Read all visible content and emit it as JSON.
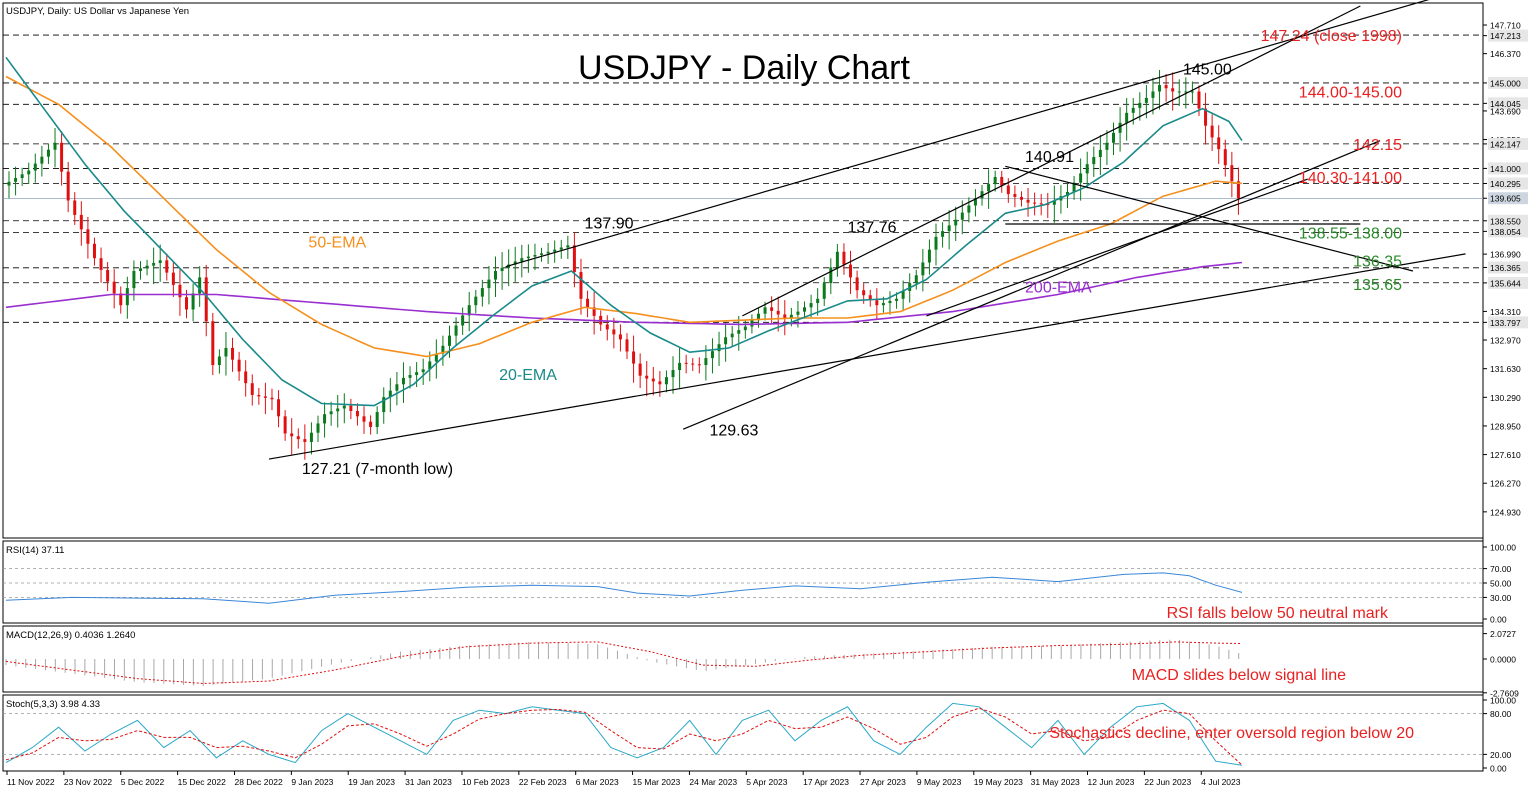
{
  "header": {
    "symbol_caption": "USDJPY, Daily:  US Dollar vs Japanese Yen"
  },
  "colors": {
    "bull": "#0b7a1c",
    "bear": "#e01010",
    "ema20": "#1a8a8a",
    "ema50": "#f5901e",
    "ema200": "#9a2fd0",
    "rsi": "#3a86d8",
    "macd_hist": "#a8a8a8",
    "macd_signal": "#e01010",
    "stoch_main": "#2aa8c8",
    "stoch_signal": "#e01010",
    "annot_red": "#e82020",
    "annot_green": "#2a8a2a"
  },
  "chart_data": {
    "type": "candlestick",
    "title": "USDJPY - Daily Chart",
    "price_axis": {
      "range": [
        123.8,
        148.6
      ],
      "ticks": [
        "147.710",
        "147.213",
        "146.370",
        "145.000",
        "144.045",
        "143.690",
        "142.350",
        "142.147",
        "141.000",
        "140.295",
        "139.605",
        "138.550",
        "138.054",
        "136.990",
        "136.365",
        "135.644",
        "134.310",
        "133.797",
        "132.970",
        "131.630",
        "130.290",
        "128.950",
        "127.610",
        "126.270",
        "124.930"
      ],
      "highlighted_ticks": [
        "147.213",
        "145.000",
        "144.045",
        "142.147",
        "141.000",
        "140.295",
        "139.605",
        "138.550",
        "138.054",
        "136.365",
        "135.644",
        "133.797"
      ]
    },
    "dates": [
      "11 Nov 2022",
      "23 Nov 2022",
      "5 Dec 2022",
      "15 Dec 2022",
      "28 Dec 2022",
      "9 Jan 2023",
      "19 Jan 2023",
      "31 Jan 2023",
      "10 Feb 2023",
      "22 Feb 2023",
      "6 Mar 2023",
      "15 Mar 2023",
      "24 Mar 2023",
      "5 Apr 2023",
      "17 Apr 2023",
      "27 Apr 2023",
      "9 May 2023",
      "19 May 2023",
      "31 May 2023",
      "12 Jun 2023",
      "22 Jun 2023",
      "4 Jul 2023"
    ],
    "close_path": [
      [
        0,
        140.2
      ],
      [
        4,
        140.9
      ],
      [
        8,
        142.2
      ],
      [
        10,
        139.5
      ],
      [
        14,
        136.8
      ],
      [
        18,
        134.6
      ],
      [
        20,
        136.2
      ],
      [
        24,
        136.7
      ],
      [
        28,
        134.4
      ],
      [
        30,
        135.9
      ],
      [
        32,
        131.8
      ],
      [
        34,
        132.6
      ],
      [
        38,
        130.4
      ],
      [
        41,
        130.2
      ],
      [
        43,
        128.6
      ],
      [
        46,
        128.2
      ],
      [
        49,
        129.5
      ],
      [
        52,
        129.9
      ],
      [
        56,
        128.9
      ],
      [
        58,
        130.3
      ],
      [
        61,
        131.2
      ],
      [
        64,
        131.6
      ],
      [
        67,
        132.7
      ],
      [
        71,
        134.6
      ],
      [
        75,
        136.2
      ],
      [
        79,
        136.8
      ],
      [
        83,
        137.1
      ],
      [
        86,
        137.4
      ],
      [
        88,
        134.9
      ],
      [
        91,
        133.7
      ],
      [
        94,
        133.0
      ],
      [
        97,
        131.3
      ],
      [
        100,
        130.9
      ],
      [
        103,
        131.9
      ],
      [
        106,
        131.8
      ],
      [
        110,
        133.1
      ],
      [
        113,
        133.6
      ],
      [
        116,
        134.5
      ],
      [
        119,
        134.0
      ],
      [
        121,
        134.3
      ],
      [
        124,
        134.9
      ],
      [
        127,
        137.1
      ],
      [
        130,
        135.3
      ],
      [
        133,
        134.6
      ],
      [
        136,
        134.9
      ],
      [
        139,
        136.0
      ],
      [
        142,
        137.8
      ],
      [
        145,
        138.6
      ],
      [
        148,
        139.6
      ],
      [
        151,
        140.6
      ],
      [
        153,
        139.8
      ],
      [
        156,
        139.4
      ],
      [
        159,
        139.3
      ],
      [
        162,
        139.9
      ],
      [
        165,
        141.2
      ],
      [
        168,
        142.2
      ],
      [
        171,
        143.6
      ],
      [
        174,
        144.3
      ],
      [
        176,
        144.9
      ],
      [
        178,
        144.6
      ],
      [
        181,
        144.6
      ],
      [
        183,
        143.0
      ],
      [
        185,
        141.9
      ],
      [
        187,
        140.4
      ],
      [
        188,
        139.6
      ]
    ],
    "ema20_path": [
      [
        0,
        146.2
      ],
      [
        6,
        143.7
      ],
      [
        12,
        141.2
      ],
      [
        18,
        139.0
      ],
      [
        24,
        137.1
      ],
      [
        30,
        135.2
      ],
      [
        36,
        133.0
      ],
      [
        42,
        131.1
      ],
      [
        48,
        130.0
      ],
      [
        56,
        129.9
      ],
      [
        62,
        130.9
      ],
      [
        68,
        132.6
      ],
      [
        74,
        134.1
      ],
      [
        80,
        135.5
      ],
      [
        86,
        136.2
      ],
      [
        92,
        134.6
      ],
      [
        98,
        133.3
      ],
      [
        104,
        132.4
      ],
      [
        110,
        132.6
      ],
      [
        116,
        133.4
      ],
      [
        122,
        134.1
      ],
      [
        128,
        134.8
      ],
      [
        134,
        134.9
      ],
      [
        140,
        135.8
      ],
      [
        146,
        137.4
      ],
      [
        152,
        138.9
      ],
      [
        158,
        139.3
      ],
      [
        164,
        140.1
      ],
      [
        170,
        141.3
      ],
      [
        176,
        143.0
      ],
      [
        182,
        143.8
      ],
      [
        186,
        143.2
      ],
      [
        188,
        142.3
      ]
    ],
    "ema50_path": [
      [
        0,
        145.3
      ],
      [
        8,
        144.0
      ],
      [
        16,
        142.0
      ],
      [
        24,
        139.6
      ],
      [
        32,
        137.2
      ],
      [
        40,
        135.2
      ],
      [
        48,
        133.7
      ],
      [
        56,
        132.6
      ],
      [
        64,
        132.2
      ],
      [
        72,
        132.8
      ],
      [
        80,
        133.8
      ],
      [
        88,
        134.5
      ],
      [
        96,
        134.2
      ],
      [
        104,
        133.8
      ],
      [
        112,
        133.9
      ],
      [
        120,
        134.0
      ],
      [
        128,
        134.0
      ],
      [
        136,
        134.3
      ],
      [
        144,
        135.3
      ],
      [
        152,
        136.6
      ],
      [
        160,
        137.6
      ],
      [
        168,
        138.4
      ],
      [
        176,
        139.7
      ],
      [
        184,
        140.4
      ],
      [
        188,
        140.3
      ]
    ],
    "ema200_path": [
      [
        0,
        134.5
      ],
      [
        16,
        135.1
      ],
      [
        32,
        135.1
      ],
      [
        48,
        134.7
      ],
      [
        64,
        134.3
      ],
      [
        80,
        134.0
      ],
      [
        96,
        133.8
      ],
      [
        112,
        133.7
      ],
      [
        128,
        133.8
      ],
      [
        144,
        134.3
      ],
      [
        160,
        135.1
      ],
      [
        172,
        135.9
      ],
      [
        182,
        136.4
      ],
      [
        188,
        136.6
      ]
    ],
    "trendlines": [
      {
        "from": [
          40,
          127.4
        ],
        "to": [
          222,
          137.0
        ]
      },
      {
        "from": [
          76,
          136.4
        ],
        "to": [
          222,
          149.4
        ]
      },
      {
        "from": [
          103,
          128.8
        ],
        "to": [
          209,
          142.3
        ]
      },
      {
        "from": [
          112,
          134.1
        ],
        "to": [
          206,
          148.6
        ]
      },
      {
        "from": [
          140,
          134.1
        ],
        "to": [
          198,
          140.5
        ]
      },
      {
        "from": [
          152,
          141.1
        ],
        "to": [
          214,
          136.2
        ]
      },
      {
        "from": [
          152,
          138.4
        ],
        "to": [
          206,
          138.4
        ]
      }
    ],
    "dashed_levels": [
      147.24,
      145.0,
      144.0,
      142.15,
      141.0,
      140.3,
      138.55,
      138.0,
      136.35,
      135.65,
      133.8
    ],
    "series": [
      {
        "name": "20-EMA"
      },
      {
        "name": "50-EMA"
      },
      {
        "name": "200-EMA"
      }
    ],
    "chart_labels": [
      {
        "text": "137.90",
        "color": "black",
        "at": [
          88,
          138.2
        ]
      },
      {
        "text": "137.76",
        "color": "black",
        "at": [
          128,
          138.0
        ]
      },
      {
        "text": "140.91",
        "color": "black",
        "at": [
          155,
          141.3
        ]
      },
      {
        "text": "145.00",
        "color": "black",
        "at": [
          179,
          145.4
        ]
      },
      {
        "text": "129.63",
        "color": "black",
        "at": [
          107,
          128.5
        ]
      },
      {
        "text": "127.21 (7-month low)",
        "color": "black",
        "at": [
          45,
          126.7
        ]
      },
      {
        "text": "50-EMA",
        "color": "ema50",
        "at": [
          46,
          137.3
        ]
      },
      {
        "text": "20-EMA",
        "color": "ema20",
        "at": [
          75,
          131.1
        ]
      },
      {
        "text": "200-EMA",
        "color": "ema200",
        "at": [
          155,
          135.2
        ]
      }
    ],
    "level_labels": [
      {
        "text": "147.24 (close 1998)",
        "color": "annot_red",
        "price": 147.24
      },
      {
        "text": "144.00-145.00",
        "color": "annot_red",
        "price": 144.6
      },
      {
        "text": "142.15",
        "color": "annot_red",
        "price": 142.15
      },
      {
        "text": "140.30-141.00",
        "color": "annot_red",
        "price": 140.6
      },
      {
        "text": "138.55-138.00",
        "color": "annot_green",
        "price": 138.0
      },
      {
        "text": "136.35",
        "color": "annot_green",
        "price": 136.7
      },
      {
        "text": "135.65",
        "color": "annot_green",
        "price": 135.6
      }
    ],
    "rsi": {
      "header": "RSI(14) 37.11",
      "ticks": [
        "100.00",
        "70.00",
        "50.00",
        "30.00",
        "0.00"
      ],
      "levels": [
        70,
        50,
        30
      ],
      "annotation": "RSI falls below 50 neutral mark",
      "path": [
        [
          0,
          26
        ],
        [
          10,
          30
        ],
        [
          20,
          29
        ],
        [
          30,
          28
        ],
        [
          40,
          22
        ],
        [
          50,
          33
        ],
        [
          60,
          38
        ],
        [
          70,
          44
        ],
        [
          80,
          47
        ],
        [
          90,
          45
        ],
        [
          96,
          36
        ],
        [
          104,
          32
        ],
        [
          112,
          40
        ],
        [
          120,
          46
        ],
        [
          130,
          42
        ],
        [
          140,
          51
        ],
        [
          150,
          58
        ],
        [
          160,
          52
        ],
        [
          170,
          62
        ],
        [
          176,
          64
        ],
        [
          180,
          60
        ],
        [
          184,
          47
        ],
        [
          188,
          37
        ]
      ]
    },
    "macd": {
      "header": "MACD(12,26,9) 0.4036 1.2640",
      "ticks": [
        "2.0727",
        "0.0000",
        "-2.7609"
      ],
      "annotation": "MACD slides below signal line",
      "histogram": [
        [
          0,
          -0.5
        ],
        [
          10,
          -1.2
        ],
        [
          20,
          -1.9
        ],
        [
          30,
          -2.2
        ],
        [
          40,
          -1.6
        ],
        [
          50,
          -0.4
        ],
        [
          60,
          0.6
        ],
        [
          70,
          1.1
        ],
        [
          80,
          1.4
        ],
        [
          90,
          1.2
        ],
        [
          98,
          -0.2
        ],
        [
          106,
          -1.0
        ],
        [
          114,
          -0.4
        ],
        [
          122,
          0.2
        ],
        [
          130,
          0.4
        ],
        [
          140,
          0.7
        ],
        [
          150,
          1.0
        ],
        [
          160,
          1.1
        ],
        [
          170,
          1.4
        ],
        [
          178,
          1.6
        ],
        [
          184,
          1.1
        ],
        [
          188,
          0.4
        ]
      ],
      "signal": [
        [
          0,
          -0.2
        ],
        [
          10,
          -0.9
        ],
        [
          20,
          -1.6
        ],
        [
          30,
          -2.0
        ],
        [
          40,
          -1.8
        ],
        [
          50,
          -0.9
        ],
        [
          60,
          0.2
        ],
        [
          70,
          1.0
        ],
        [
          80,
          1.3
        ],
        [
          90,
          1.4
        ],
        [
          98,
          0.6
        ],
        [
          106,
          -0.5
        ],
        [
          114,
          -0.6
        ],
        [
          122,
          -0.1
        ],
        [
          130,
          0.3
        ],
        [
          140,
          0.6
        ],
        [
          150,
          0.9
        ],
        [
          160,
          1.1
        ],
        [
          170,
          1.2
        ],
        [
          178,
          1.4
        ],
        [
          184,
          1.3
        ],
        [
          188,
          1.26
        ]
      ]
    },
    "stochastic": {
      "header": "Stoch(5,3,3) 3.98 4.33",
      "ticks": [
        "100.00",
        "80.00",
        "20.00",
        "0.00"
      ],
      "levels": [
        80,
        20
      ],
      "annotation": "Stochastics decline, enter oversold region below 20",
      "main": [
        [
          0,
          8
        ],
        [
          4,
          30
        ],
        [
          8,
          60
        ],
        [
          12,
          25
        ],
        [
          16,
          50
        ],
        [
          20,
          70
        ],
        [
          24,
          30
        ],
        [
          28,
          55
        ],
        [
          32,
          15
        ],
        [
          36,
          40
        ],
        [
          40,
          20
        ],
        [
          44,
          8
        ],
        [
          48,
          55
        ],
        [
          52,
          80
        ],
        [
          56,
          60
        ],
        [
          60,
          40
        ],
        [
          64,
          20
        ],
        [
          68,
          70
        ],
        [
          72,
          85
        ],
        [
          76,
          80
        ],
        [
          80,
          90
        ],
        [
          84,
          85
        ],
        [
          88,
          80
        ],
        [
          92,
          30
        ],
        [
          96,
          15
        ],
        [
          100,
          30
        ],
        [
          104,
          70
        ],
        [
          108,
          20
        ],
        [
          112,
          70
        ],
        [
          116,
          85
        ],
        [
          120,
          40
        ],
        [
          124,
          70
        ],
        [
          128,
          90
        ],
        [
          132,
          40
        ],
        [
          136,
          20
        ],
        [
          140,
          60
        ],
        [
          144,
          95
        ],
        [
          148,
          90
        ],
        [
          152,
          60
        ],
        [
          156,
          30
        ],
        [
          160,
          70
        ],
        [
          164,
          20
        ],
        [
          168,
          60
        ],
        [
          172,
          90
        ],
        [
          176,
          95
        ],
        [
          180,
          70
        ],
        [
          184,
          10
        ],
        [
          188,
          4
        ]
      ],
      "signal": [
        [
          0,
          12
        ],
        [
          4,
          22
        ],
        [
          8,
          45
        ],
        [
          12,
          40
        ],
        [
          16,
          42
        ],
        [
          20,
          55
        ],
        [
          24,
          45
        ],
        [
          28,
          45
        ],
        [
          32,
          30
        ],
        [
          36,
          32
        ],
        [
          40,
          25
        ],
        [
          44,
          15
        ],
        [
          48,
          35
        ],
        [
          52,
          62
        ],
        [
          56,
          65
        ],
        [
          60,
          50
        ],
        [
          64,
          32
        ],
        [
          68,
          50
        ],
        [
          72,
          72
        ],
        [
          76,
          80
        ],
        [
          80,
          85
        ],
        [
          84,
          86
        ],
        [
          88,
          82
        ],
        [
          92,
          55
        ],
        [
          96,
          30
        ],
        [
          100,
          28
        ],
        [
          104,
          50
        ],
        [
          108,
          40
        ],
        [
          112,
          50
        ],
        [
          116,
          70
        ],
        [
          120,
          58
        ],
        [
          124,
          60
        ],
        [
          128,
          75
        ],
        [
          132,
          58
        ],
        [
          136,
          35
        ],
        [
          140,
          45
        ],
        [
          144,
          75
        ],
        [
          148,
          88
        ],
        [
          152,
          75
        ],
        [
          156,
          50
        ],
        [
          160,
          55
        ],
        [
          164,
          40
        ],
        [
          168,
          45
        ],
        [
          172,
          70
        ],
        [
          176,
          85
        ],
        [
          180,
          80
        ],
        [
          184,
          40
        ],
        [
          188,
          4.3
        ]
      ]
    }
  }
}
